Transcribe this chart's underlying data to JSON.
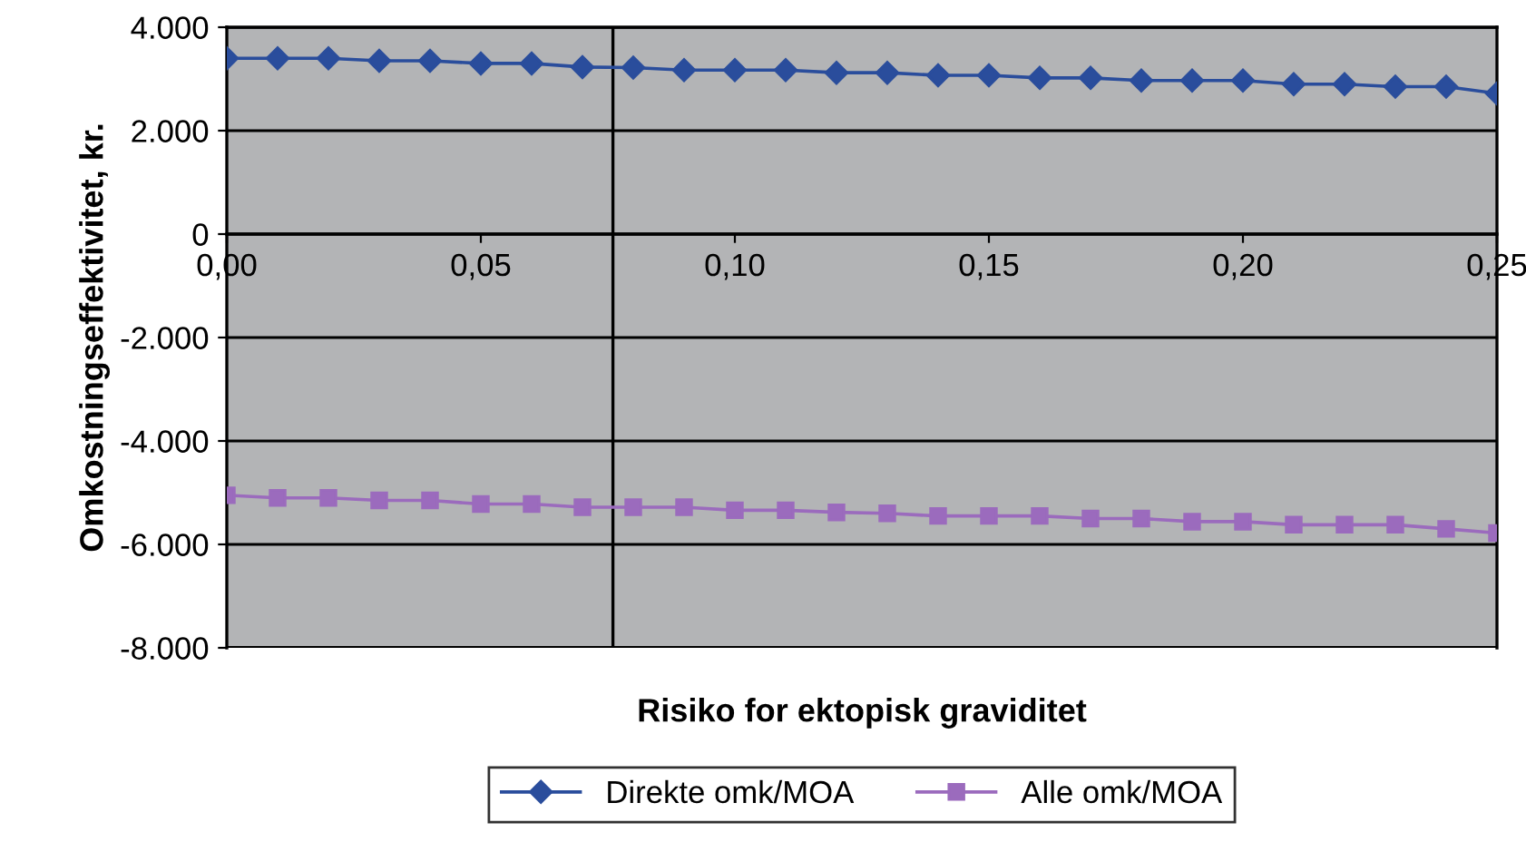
{
  "chart_data": {
    "type": "line",
    "xlabel": "Risiko for ektopisk graviditet",
    "ylabel": "Omkostningseffektivitet, kr.",
    "x": [
      0,
      0.01,
      0.02,
      0.03,
      0.04,
      0.05,
      0.06,
      0.07,
      0.08,
      0.09,
      0.1,
      0.11,
      0.12,
      0.13,
      0.14,
      0.15,
      0.16,
      0.17,
      0.18,
      0.19,
      0.2,
      0.21,
      0.22,
      0.23,
      0.24,
      0.25
    ],
    "series": [
      {
        "name": "Direkte omk/MOA",
        "color": "#2a4d9c",
        "marker": "diamond",
        "values": [
          3400,
          3400,
          3400,
          3350,
          3350,
          3300,
          3300,
          3230,
          3220,
          3170,
          3170,
          3170,
          3120,
          3120,
          3070,
          3070,
          3020,
          3020,
          2970,
          2970,
          2970,
          2900,
          2900,
          2850,
          2850,
          2720
        ]
      },
      {
        "name": "Alle omk/MOA",
        "color": "#9b6bbd",
        "marker": "square",
        "values": [
          -5050,
          -5100,
          -5100,
          -5150,
          -5150,
          -5220,
          -5220,
          -5280,
          -5280,
          -5280,
          -5340,
          -5340,
          -5380,
          -5400,
          -5450,
          -5450,
          -5450,
          -5500,
          -5500,
          -5560,
          -5560,
          -5620,
          -5620,
          -5620,
          -5700,
          -5780
        ]
      }
    ],
    "xlim": [
      0,
      0.25
    ],
    "xticks": [
      {
        "value": 0,
        "label": "0,00"
      },
      {
        "value": 0.05,
        "label": "0,05"
      },
      {
        "value": 0.1,
        "label": "0,10"
      },
      {
        "value": 0.15,
        "label": "0,15"
      },
      {
        "value": 0.2,
        "label": "0,20"
      },
      {
        "value": 0.25,
        "label": "0,25"
      }
    ],
    "ylim": [
      -8000,
      4000
    ],
    "yticks": [
      {
        "value": -8000,
        "label": "-8.000"
      },
      {
        "value": -6000,
        "label": "-6.000"
      },
      {
        "value": -4000,
        "label": "-4.000"
      },
      {
        "value": -2000,
        "label": "-2.000"
      },
      {
        "value": 0,
        "label": "0"
      },
      {
        "value": 2000,
        "label": "2.000"
      },
      {
        "value": 4000,
        "label": "4.000"
      }
    ],
    "ref_lines": [
      {
        "axis": "x",
        "value": 0.076,
        "color": "#000000"
      }
    ],
    "grid": "y",
    "legend": "bottom"
  }
}
